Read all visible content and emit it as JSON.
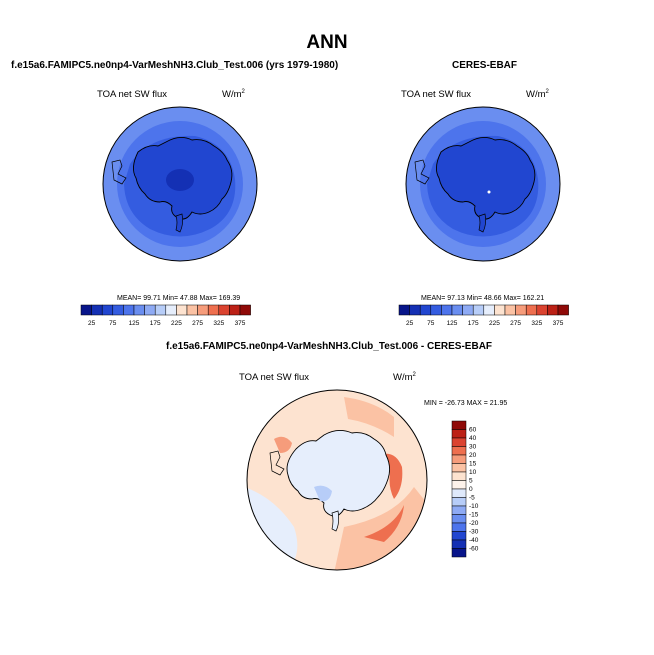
{
  "figure": {
    "title": "ANN",
    "units_base": "W/m",
    "units_exp": "2"
  },
  "panels": {
    "model": {
      "title": "f.e15a6.FAMIPC5.ne0np4-VarMeshNH3.Club_Test.006 (yrs 1979-1980)",
      "variable": "TOA net SW flux",
      "stats": "MEAN=  99.71  Min=  47.88  Max=  169.39"
    },
    "obs": {
      "title": "CERES-EBAF",
      "variable": "TOA net SW flux",
      "stats": "MEAN=  97.13  Min=  48.66  Max=  162.21"
    },
    "diff": {
      "title": "f.e15a6.FAMIPC5.ne0np4-VarMeshNH3.Club_Test.006 - CERES-EBAF",
      "variable": "TOA net SW flux",
      "stats": "MIN = -26.73 MAX =  21.95"
    }
  },
  "chart_data": [
    {
      "type": "heatmap",
      "projection": "polar-stereographic-south",
      "title": "f.e15a6.FAMIPC5.ne0np4-VarMeshNH3.Club_Test.006 (yrs 1979-1980)",
      "variable": "TOA net SW flux",
      "units": "W/m2",
      "mean": 99.71,
      "min": 47.88,
      "max": 169.39,
      "colorbar_levels": [
        25,
        50,
        75,
        100,
        125,
        150,
        175,
        200,
        225,
        250,
        275,
        300,
        325,
        350,
        375
      ],
      "colorbar_labels": [
        "25",
        "75",
        "125",
        "175",
        "225",
        "275",
        "325",
        "375"
      ],
      "colors": [
        "#08158a",
        "#1430b4",
        "#2146d0",
        "#345ce0",
        "#4d74ec",
        "#6a8ef0",
        "#8eaaf4",
        "#b7cdf8",
        "#e6eefc",
        "#fde3d0",
        "#fbc2a4",
        "#f69c7b",
        "#ee6f4f",
        "#db4330",
        "#bc2116",
        "#8f0a08"
      ]
    },
    {
      "type": "heatmap",
      "projection": "polar-stereographic-south",
      "title": "CERES-EBAF",
      "variable": "TOA net SW flux",
      "units": "W/m2",
      "mean": 97.13,
      "min": 48.66,
      "max": 162.21,
      "colorbar_levels": [
        25,
        50,
        75,
        100,
        125,
        150,
        175,
        200,
        225,
        250,
        275,
        300,
        325,
        350,
        375
      ],
      "colorbar_labels": [
        "25",
        "75",
        "125",
        "175",
        "225",
        "275",
        "325",
        "375"
      ],
      "colors": [
        "#08158a",
        "#1430b4",
        "#2146d0",
        "#345ce0",
        "#4d74ec",
        "#6a8ef0",
        "#8eaaf4",
        "#b7cdf8",
        "#e6eefc",
        "#fde3d0",
        "#fbc2a4",
        "#f69c7b",
        "#ee6f4f",
        "#db4330",
        "#bc2116",
        "#8f0a08"
      ]
    },
    {
      "type": "heatmap",
      "projection": "polar-stereographic-south",
      "title": "f.e15a6.FAMIPC5.ne0np4-VarMeshNH3.Club_Test.006 - CERES-EBAF",
      "variable": "TOA net SW flux",
      "units": "W/m2",
      "min": -26.73,
      "max": 21.95,
      "colorbar_levels": [
        60,
        40,
        30,
        20,
        15,
        10,
        5,
        0,
        -5,
        -10,
        -15,
        -20,
        -30,
        -40,
        -60
      ],
      "colorbar_labels": [
        "60",
        "40",
        "30",
        "20",
        "15",
        "10",
        "5",
        "0",
        "-5",
        "-10",
        "-15",
        "-20",
        "-30",
        "-40",
        "-60"
      ],
      "colors": [
        "#8f0a08",
        "#bc2116",
        "#db4330",
        "#ee6f4f",
        "#f69c7b",
        "#fbc2a4",
        "#fde3d0",
        "#fdf2ea",
        "#dfe9fb",
        "#b7cdf8",
        "#8eaaf4",
        "#6a8ef0",
        "#4d74ec",
        "#2146d0",
        "#1430b4",
        "#08158a"
      ]
    }
  ]
}
